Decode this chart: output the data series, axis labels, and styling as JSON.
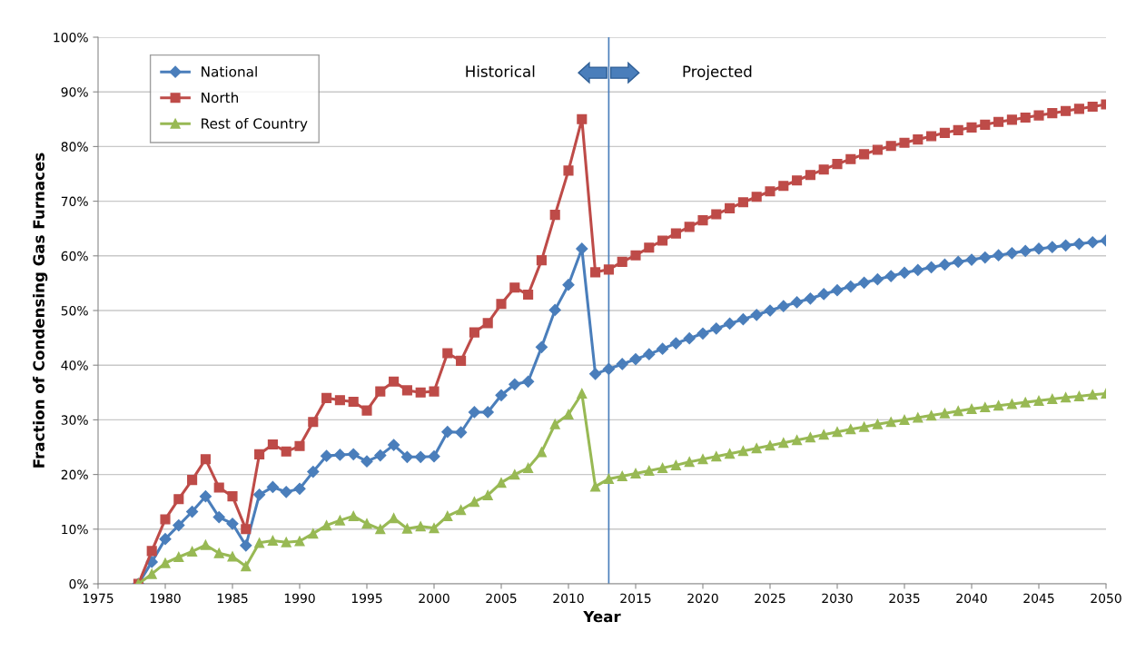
{
  "chart_data": {
    "type": "line",
    "xlabel": "Year",
    "ylabel": "Fraction of Condensing Gas Furnaces",
    "x": [
      1978,
      1979,
      1980,
      1981,
      1982,
      1983,
      1984,
      1985,
      1986,
      1987,
      1988,
      1989,
      1990,
      1991,
      1992,
      1993,
      1994,
      1995,
      1996,
      1997,
      1998,
      1999,
      2000,
      2001,
      2002,
      2003,
      2004,
      2005,
      2006,
      2007,
      2008,
      2009,
      2010,
      2011,
      2012,
      2013,
      2014,
      2015,
      2016,
      2017,
      2018,
      2019,
      2020,
      2021,
      2022,
      2023,
      2024,
      2025,
      2026,
      2027,
      2028,
      2029,
      2030,
      2031,
      2032,
      2033,
      2034,
      2035,
      2036,
      2037,
      2038,
      2039,
      2040,
      2041,
      2042,
      2043,
      2044,
      2045,
      2046,
      2047,
      2048,
      2049,
      2050
    ],
    "series": [
      {
        "name": "National",
        "color": "#4a7ebb",
        "marker": "diamond",
        "values": [
          0,
          4,
          8.2,
          10.7,
          13.2,
          16,
          12.2,
          11,
          7,
          16.3,
          17.7,
          16.8,
          17.4,
          20.5,
          23.4,
          23.6,
          23.7,
          22.4,
          23.5,
          25.4,
          23.2,
          23.2,
          23.3,
          27.8,
          27.7,
          31.4,
          31.4,
          34.5,
          36.5,
          37,
          43.3,
          50.1,
          54.7,
          61.3,
          38.4,
          39.3,
          40.2,
          41.1,
          42.0,
          43.0,
          44.0,
          44.9,
          45.8,
          46.7,
          47.6,
          48.4,
          49.2,
          50.0,
          50.8,
          51.5,
          52.2,
          53.0,
          53.7,
          54.4,
          55.1,
          55.7,
          56.3,
          56.9,
          57.4,
          57.9,
          58.4,
          58.9,
          59.3,
          59.7,
          60.1,
          60.5,
          60.9,
          61.3,
          61.6,
          61.9,
          62.2,
          62.5,
          62.8
        ]
      },
      {
        "name": "North",
        "color": "#be4b48",
        "marker": "square",
        "values": [
          0,
          6,
          11.8,
          15.5,
          19,
          22.8,
          17.6,
          16,
          10,
          23.7,
          25.5,
          24.2,
          25.2,
          29.6,
          34,
          33.6,
          33.3,
          31.7,
          35.2,
          37,
          35.4,
          35,
          35.2,
          42.2,
          40.8,
          46,
          47.7,
          51.2,
          54.2,
          52.9,
          59.2,
          67.5,
          75.6,
          85,
          57,
          57.5,
          58.9,
          60.1,
          61.5,
          62.8,
          64.1,
          65.3,
          66.5,
          67.6,
          68.7,
          69.8,
          70.8,
          71.8,
          72.8,
          73.8,
          74.8,
          75.8,
          76.8,
          77.7,
          78.6,
          79.4,
          80.1,
          80.7,
          81.3,
          81.9,
          82.5,
          83.0,
          83.5,
          84.0,
          84.5,
          84.9,
          85.3,
          85.7,
          86.1,
          86.5,
          86.9,
          87.3,
          87.7
        ]
      },
      {
        "name": "Rest of Country",
        "color": "#98b954",
        "marker": "triangle",
        "values": [
          0,
          1.8,
          3.8,
          4.9,
          5.9,
          7.1,
          5.6,
          5,
          3.2,
          7.5,
          7.9,
          7.6,
          7.8,
          9.2,
          10.7,
          11.6,
          12.4,
          11,
          10,
          12,
          10.1,
          10.5,
          10.2,
          12.4,
          13.5,
          15,
          16.2,
          18.5,
          20,
          21.2,
          24.1,
          29.2,
          31,
          34.8,
          17.8,
          19.2,
          19.7,
          20.2,
          20.7,
          21.2,
          21.7,
          22.3,
          22.8,
          23.3,
          23.8,
          24.3,
          24.8,
          25.3,
          25.8,
          26.3,
          26.8,
          27.3,
          27.8,
          28.3,
          28.7,
          29.2,
          29.6,
          30.0,
          30.4,
          30.8,
          31.2,
          31.6,
          32.0,
          32.3,
          32.6,
          32.9,
          33.2,
          33.5,
          33.8,
          34.1,
          34.3,
          34.6,
          34.8
        ]
      }
    ],
    "xlim": [
      1975,
      2050
    ],
    "xticks": [
      1975,
      1980,
      1985,
      1990,
      1995,
      2000,
      2005,
      2010,
      2015,
      2020,
      2025,
      2030,
      2035,
      2040,
      2045,
      2050
    ],
    "ylim": [
      0,
      100
    ],
    "yticks": [
      {
        "value": 0,
        "label": "0%"
      },
      {
        "value": 10,
        "label": "10%"
      },
      {
        "value": 20,
        "label": "20%"
      },
      {
        "value": 30,
        "label": "30%"
      },
      {
        "value": 40,
        "label": "40%"
      },
      {
        "value": 50,
        "label": "50%"
      },
      {
        "value": 60,
        "label": "60%"
      },
      {
        "value": 70,
        "label": "70%"
      },
      {
        "value": 80,
        "label": "80%"
      },
      {
        "value": 90,
        "label": "90%"
      },
      {
        "value": 100,
        "label": "100%"
      }
    ],
    "ref_lines": [
      {
        "axis": "x",
        "value": 2013,
        "color": "#4a7ebb",
        "line_style": "solid"
      }
    ],
    "annotations": [
      "Historical",
      "Projected"
    ],
    "grid": "y",
    "legend": "top left",
    "line_style": "solid"
  }
}
